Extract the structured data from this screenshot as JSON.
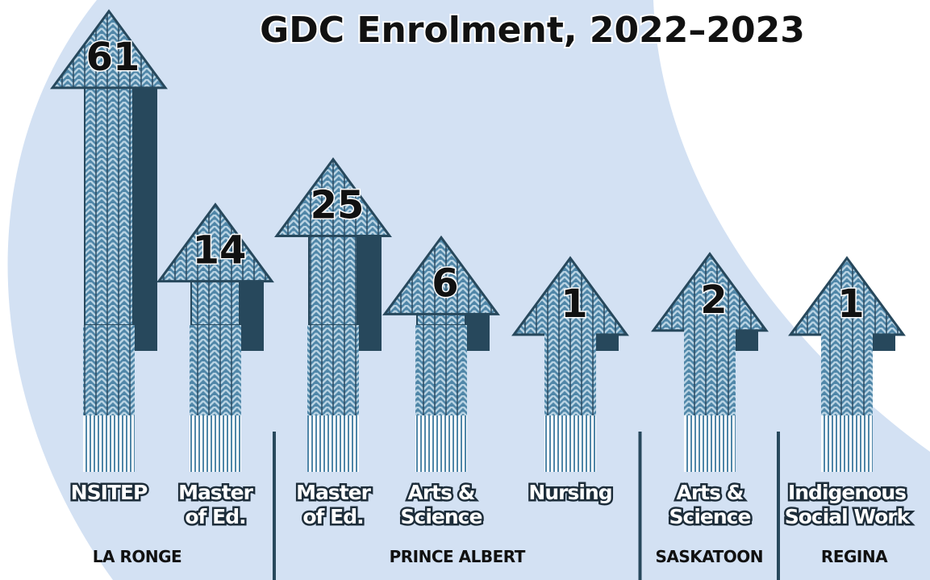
{
  "chart_data": {
    "type": "bar",
    "title": "GDC Enrolment, 2022–2023",
    "categories": [
      "NSITEP",
      "Master of Ed.",
      "Master of Ed.",
      "Arts & Science",
      "Nursing",
      "Arts & Science",
      "Indigenous Social Work"
    ],
    "values": [
      61,
      14,
      25,
      6,
      1,
      2,
      1
    ],
    "groups": [
      "LA RONGE",
      "LA RONGE",
      "PRINCE ALBERT",
      "PRINCE ALBERT",
      "PRINCE ALBERT",
      "SASKATOON",
      "REGINA"
    ],
    "color": "#4f86a8"
  }
}
